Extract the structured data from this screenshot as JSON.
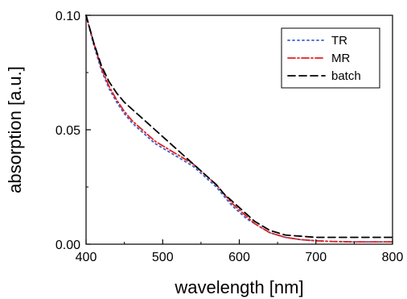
{
  "chart_data": {
    "type": "line",
    "xlabel": "wavelength [nm]",
    "ylabel": "absorption [a.u.]",
    "xlim": [
      400,
      800
    ],
    "ylim": [
      0.0,
      0.1
    ],
    "xticks": [
      400,
      500,
      600,
      700,
      800
    ],
    "xtick_labels": [
      "400",
      "500",
      "600",
      "700",
      "800"
    ],
    "yticks": [
      0.0,
      0.05,
      0.1
    ],
    "ytick_labels": [
      "0.00",
      "0.05",
      "0.10"
    ],
    "grid": false,
    "legend": "top-right",
    "series": [
      {
        "name": "TR",
        "color": "#3a5fcd",
        "style": "dotted",
        "x": [
          400,
          410,
          420,
          430,
          440,
          450,
          460,
          470,
          480,
          490,
          500,
          510,
          520,
          530,
          540,
          550,
          560,
          570,
          580,
          590,
          600,
          610,
          620,
          630,
          640,
          650,
          660,
          680,
          700,
          720,
          750,
          780,
          800
        ],
        "y": [
          0.1,
          0.087,
          0.076,
          0.068,
          0.062,
          0.057,
          0.053,
          0.05,
          0.047,
          0.044,
          0.042,
          0.04,
          0.038,
          0.036,
          0.034,
          0.031,
          0.028,
          0.025,
          0.021,
          0.017,
          0.014,
          0.011,
          0.009,
          0.007,
          0.005,
          0.004,
          0.003,
          0.002,
          0.0015,
          0.0012,
          0.001,
          0.001,
          0.001
        ]
      },
      {
        "name": "MR",
        "color": "#e02020",
        "style": "dash-dot",
        "x": [
          400,
          410,
          420,
          430,
          440,
          450,
          460,
          470,
          480,
          490,
          500,
          510,
          520,
          530,
          540,
          550,
          560,
          570,
          580,
          590,
          600,
          610,
          620,
          630,
          640,
          650,
          660,
          680,
          700,
          720,
          750,
          780,
          800
        ],
        "y": [
          0.1,
          0.088,
          0.077,
          0.069,
          0.063,
          0.058,
          0.054,
          0.051,
          0.048,
          0.045,
          0.043,
          0.041,
          0.039,
          0.037,
          0.035,
          0.032,
          0.029,
          0.026,
          0.022,
          0.018,
          0.015,
          0.012,
          0.009,
          0.007,
          0.005,
          0.004,
          0.003,
          0.002,
          0.0015,
          0.0012,
          0.001,
          0.001,
          0.001
        ]
      },
      {
        "name": "batch",
        "color": "#000000",
        "style": "dashed",
        "x": [
          400,
          410,
          420,
          430,
          440,
          450,
          460,
          470,
          480,
          490,
          500,
          510,
          520,
          530,
          540,
          550,
          560,
          570,
          580,
          590,
          600,
          610,
          620,
          630,
          640,
          650,
          660,
          680,
          700,
          720,
          750,
          780,
          800
        ],
        "y": [
          0.1,
          0.088,
          0.078,
          0.071,
          0.066,
          0.062,
          0.059,
          0.056,
          0.053,
          0.05,
          0.047,
          0.044,
          0.041,
          0.038,
          0.035,
          0.032,
          0.029,
          0.026,
          0.022,
          0.019,
          0.016,
          0.013,
          0.01,
          0.008,
          0.006,
          0.005,
          0.004,
          0.0035,
          0.003,
          0.003,
          0.003,
          0.003,
          0.003
        ]
      }
    ]
  }
}
